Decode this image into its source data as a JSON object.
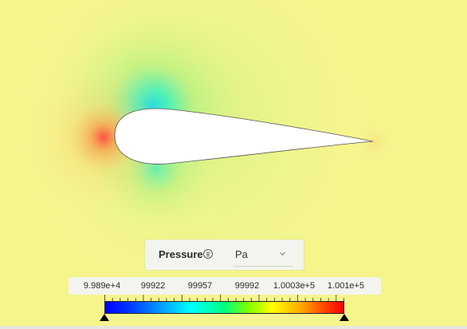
{
  "legend": {
    "variable": "Pressure",
    "variable_menu_icon": "list-menu-icon",
    "unit": "Pa",
    "unit_dropdown_icon": "chevron-down-icon",
    "ticks": [
      "9.989e+4",
      "99922",
      "99957",
      "99992",
      "1.0003e+5",
      "1.001e+5"
    ],
    "min_handle_icon": "triangle-up-icon",
    "max_handle_icon": "triangle-up-icon"
  },
  "colors": {
    "background_field": "#f5f58c",
    "airfoil_fill": "#ffffff",
    "stagnation_high": "#ff5a3c",
    "suction_low": "#00e6f0"
  }
}
